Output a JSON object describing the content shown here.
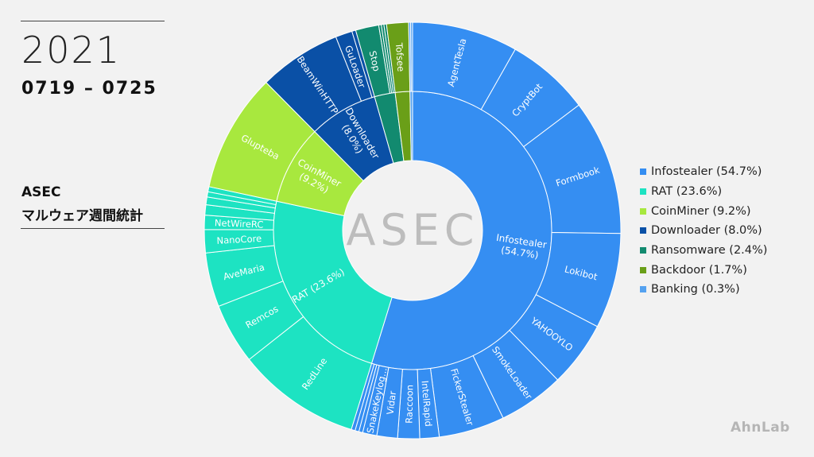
{
  "header": {
    "year": "2021",
    "range": "0719 – 0725",
    "title_line1": "ASEC",
    "title_line2": "マルウェア週間統計"
  },
  "center_logo": "ASEC",
  "brand_logo": "AhnLab",
  "chart_data": {
    "type": "sunburst",
    "title": "",
    "legend_position": "right",
    "categories": [
      {
        "name": "Infostealer",
        "label": "Infostealer\n(54.7%)",
        "legend": "Infostealer (54.7%)",
        "value": 54.7,
        "color": "#358ef2",
        "children": [
          {
            "name": "AgentTesla",
            "value": 8.2
          },
          {
            "name": "CryptBot",
            "value": 6.5
          },
          {
            "name": "Formbook",
            "value": 10.5
          },
          {
            "name": "Lokibot",
            "value": 7.4
          },
          {
            "name": "YAHOOYLO",
            "value": 5.1
          },
          {
            "name": "SmokeLoader",
            "value": 5.1
          },
          {
            "name": "FickerStealer",
            "value": 5.1
          },
          {
            "name": "IntelRapid",
            "value": 1.5
          },
          {
            "name": "Raccoon",
            "value": 1.7
          },
          {
            "name": "Vidar",
            "value": 1.6
          },
          {
            "name": "SnakeKeylog...",
            "value": 1.1
          },
          {
            "name": "",
            "value": 0.3
          },
          {
            "name": "",
            "value": 0.3
          },
          {
            "name": "",
            "value": 0.3
          }
        ]
      },
      {
        "name": "RAT",
        "label": "RAT (23.6%)",
        "legend": "RAT (23.6%)",
        "value": 23.6,
        "color": "#1de3c2",
        "children": [
          {
            "name": "RedLine",
            "value": 9.6
          },
          {
            "name": "Remcos",
            "value": 4.7
          },
          {
            "name": "AveMaria",
            "value": 4.2
          },
          {
            "name": "NanoCore",
            "value": 1.8
          },
          {
            "name": "NetWireRC",
            "value": 1.1
          },
          {
            "name": "",
            "value": 0.8
          },
          {
            "name": "",
            "value": 0.6
          },
          {
            "name": "",
            "value": 0.4
          },
          {
            "name": "",
            "value": 0.4
          }
        ]
      },
      {
        "name": "CoinMiner",
        "label": "CoinMiner\n(9.2%)",
        "legend": "CoinMiner (9.2%)",
        "value": 9.2,
        "color": "#a8e83e",
        "children": [
          {
            "name": "Glupteba",
            "value": 9.2
          }
        ]
      },
      {
        "name": "Downloader",
        "label": "Downloader\n(8.0%)",
        "legend": "Downloader (8.0%)",
        "value": 8.0,
        "color": "#0a50a6",
        "children": [
          {
            "name": "BeamWinHTTP",
            "value": 6.4
          },
          {
            "name": "GuLoader",
            "value": 1.3
          },
          {
            "name": "",
            "value": 0.3
          }
        ]
      },
      {
        "name": "Ransomware",
        "label": "",
        "legend": "Ransomware (2.4%)",
        "value": 2.4,
        "color": "#128a6f",
        "children": [
          {
            "name": "Stop",
            "value": 1.8
          },
          {
            "name": "",
            "value": 0.2
          },
          {
            "name": "",
            "value": 0.2
          },
          {
            "name": "",
            "value": 0.2
          }
        ]
      },
      {
        "name": "Backdoor",
        "label": "",
        "legend": "Backdoor (1.7%)",
        "value": 1.7,
        "color": "#6a9f18",
        "children": [
          {
            "name": "Tofsee",
            "value": 1.7
          }
        ]
      },
      {
        "name": "Banking",
        "label": "",
        "legend": "Banking (0.3%)",
        "value": 0.3,
        "color": "#55a2f0",
        "children": [
          {
            "name": "",
            "value": 0.15
          },
          {
            "name": "",
            "value": 0.15
          }
        ]
      }
    ]
  }
}
